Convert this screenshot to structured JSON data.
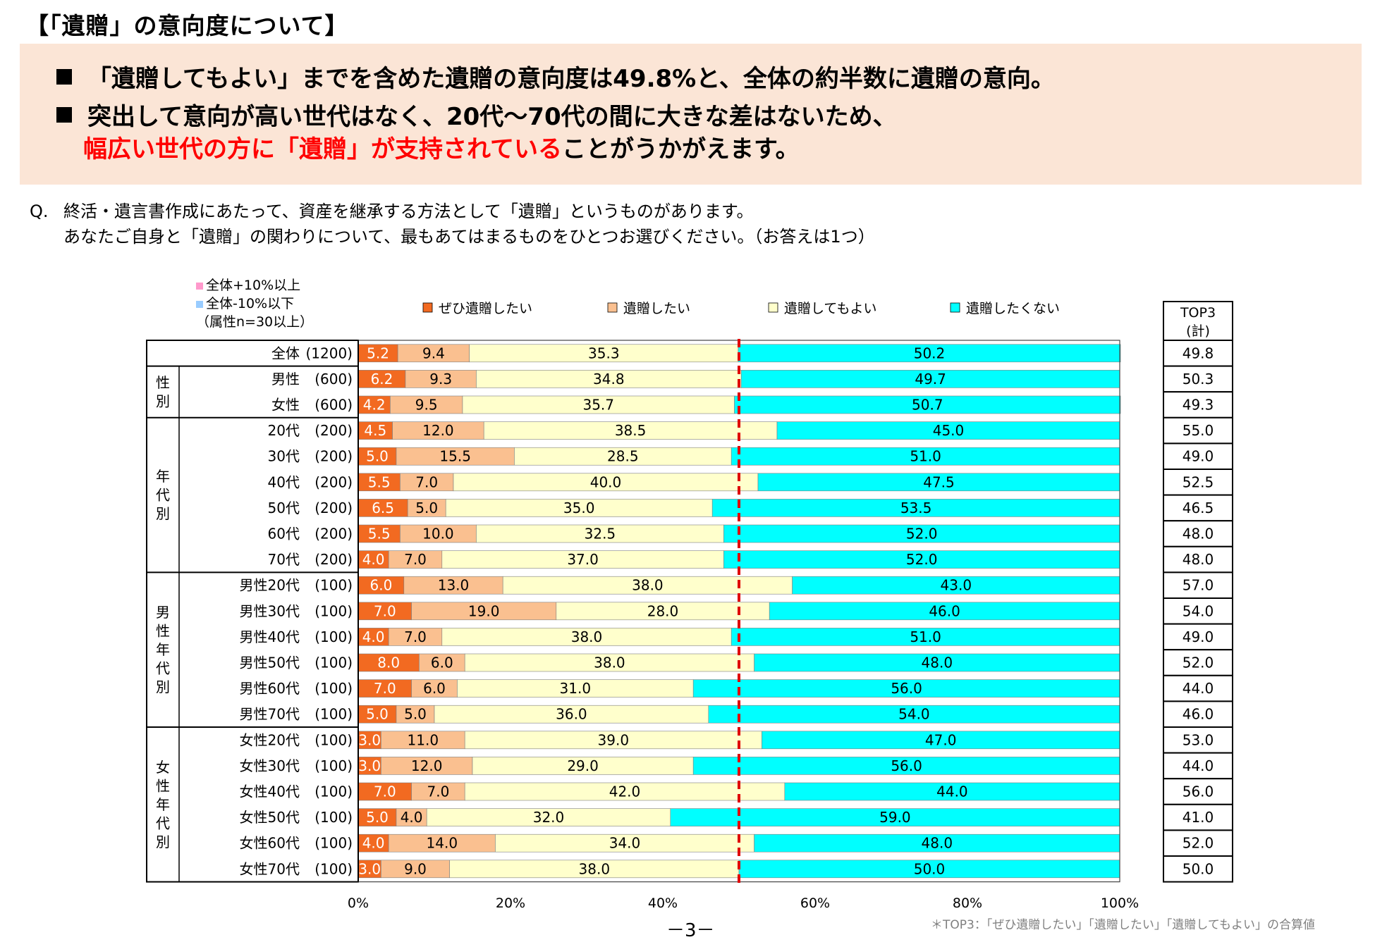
{
  "header": {
    "title": "【「遺贈」の意向度について】",
    "bullet1": "「遺贈してもよい」までを含めた遺贈の意向度は49.8%と、全体の約半数に遺贈の意向。",
    "bullet2_line1": "突出して意向が高い世代はなく、20代〜70代の間に大きな差はないため、",
    "bullet2_line2_red": "幅広い世代の方に「遺贈」が支持されている",
    "bullet2_line2_rest": "ことがうかがえます。"
  },
  "question": {
    "prefix": "Q.",
    "line1": "終活・遺言書作成にあたって、資産を継承する方法として「遺贈」というものがあります。",
    "line2": "あなたご自身と「遺贈」の関わりについて、最もあてはまるものをひとつお選びください。（お答えは1つ）"
  },
  "notes": {
    "plus": "全体+10%以上",
    "minus": "全体-10%以下",
    "condition": "（属性n=30以上）"
  },
  "colors": {
    "series": [
      "#f26a21",
      "#fac090",
      "#ffffcc",
      "#00ffff"
    ],
    "plus_marker": "#ff99cc",
    "minus_marker": "#99ccff",
    "reference_line": "#e00000",
    "box": "#fbe5d6"
  },
  "page_number": "－3－",
  "footnote": "＊TOP3：「ぜひ遺贈したい」「遺贈したい」「遺贈してもよい」の合算値",
  "chart_data": {
    "type": "bar",
    "orientation": "horizontal",
    "stacked": true,
    "unit": "%",
    "xlim": [
      0,
      100
    ],
    "x_ticks": [
      "0%",
      "20%",
      "40%",
      "60%",
      "80%",
      "100%"
    ],
    "reference_line_value": 50,
    "series_names": [
      "ぜひ遺贈したい",
      "遺贈したい",
      "遺贈してもよい",
      "遺贈したくない"
    ],
    "top3_header": [
      "TOP3",
      "(計)"
    ],
    "groups": [
      {
        "label": "",
        "start": 0,
        "end": 0
      },
      {
        "label": "性別",
        "start": 1,
        "end": 2
      },
      {
        "label": "年代別",
        "start": 3,
        "end": 8
      },
      {
        "label": "男性年代別",
        "start": 9,
        "end": 14
      },
      {
        "label": "女性年代別",
        "start": 15,
        "end": 20
      }
    ],
    "rows": [
      {
        "label": "全体",
        "n": "(1200)",
        "values": [
          5.2,
          9.4,
          35.3,
          50.2
        ],
        "top3": "49.8"
      },
      {
        "label": "男性",
        "n": "(600)",
        "values": [
          6.2,
          9.3,
          34.8,
          49.7
        ],
        "top3": "50.3"
      },
      {
        "label": "女性",
        "n": "(600)",
        "values": [
          4.2,
          9.5,
          35.7,
          50.7
        ],
        "top3": "49.3"
      },
      {
        "label": "20代",
        "n": "(200)",
        "values": [
          4.5,
          12.0,
          38.5,
          45.0
        ],
        "top3": "55.0"
      },
      {
        "label": "30代",
        "n": "(200)",
        "values": [
          5.0,
          15.5,
          28.5,
          51.0
        ],
        "top3": "49.0"
      },
      {
        "label": "40代",
        "n": "(200)",
        "values": [
          5.5,
          7.0,
          40.0,
          47.5
        ],
        "top3": "52.5"
      },
      {
        "label": "50代",
        "n": "(200)",
        "values": [
          6.5,
          5.0,
          35.0,
          53.5
        ],
        "top3": "46.5"
      },
      {
        "label": "60代",
        "n": "(200)",
        "values": [
          5.5,
          10.0,
          32.5,
          52.0
        ],
        "top3": "48.0"
      },
      {
        "label": "70代",
        "n": "(200)",
        "values": [
          4.0,
          7.0,
          37.0,
          52.0
        ],
        "top3": "48.0"
      },
      {
        "label": "男性20代",
        "n": "(100)",
        "values": [
          6.0,
          13.0,
          38.0,
          43.0
        ],
        "top3": "57.0"
      },
      {
        "label": "男性30代",
        "n": "(100)",
        "values": [
          7.0,
          19.0,
          28.0,
          46.0
        ],
        "top3": "54.0"
      },
      {
        "label": "男性40代",
        "n": "(100)",
        "values": [
          4.0,
          7.0,
          38.0,
          51.0
        ],
        "top3": "49.0"
      },
      {
        "label": "男性50代",
        "n": "(100)",
        "values": [
          8.0,
          6.0,
          38.0,
          48.0
        ],
        "top3": "52.0"
      },
      {
        "label": "男性60代",
        "n": "(100)",
        "values": [
          7.0,
          6.0,
          31.0,
          56.0
        ],
        "top3": "44.0"
      },
      {
        "label": "男性70代",
        "n": "(100)",
        "values": [
          5.0,
          5.0,
          36.0,
          54.0
        ],
        "top3": "46.0"
      },
      {
        "label": "女性20代",
        "n": "(100)",
        "values": [
          3.0,
          11.0,
          39.0,
          47.0
        ],
        "top3": "53.0"
      },
      {
        "label": "女性30代",
        "n": "(100)",
        "values": [
          3.0,
          12.0,
          29.0,
          56.0
        ],
        "top3": "44.0"
      },
      {
        "label": "女性40代",
        "n": "(100)",
        "values": [
          7.0,
          7.0,
          42.0,
          44.0
        ],
        "top3": "56.0"
      },
      {
        "label": "女性50代",
        "n": "(100)",
        "values": [
          5.0,
          4.0,
          32.0,
          59.0
        ],
        "top3": "41.0"
      },
      {
        "label": "女性60代",
        "n": "(100)",
        "values": [
          4.0,
          14.0,
          34.0,
          48.0
        ],
        "top3": "52.0"
      },
      {
        "label": "女性70代",
        "n": "(100)",
        "values": [
          3.0,
          9.0,
          38.0,
          50.0
        ],
        "top3": "50.0"
      }
    ]
  }
}
